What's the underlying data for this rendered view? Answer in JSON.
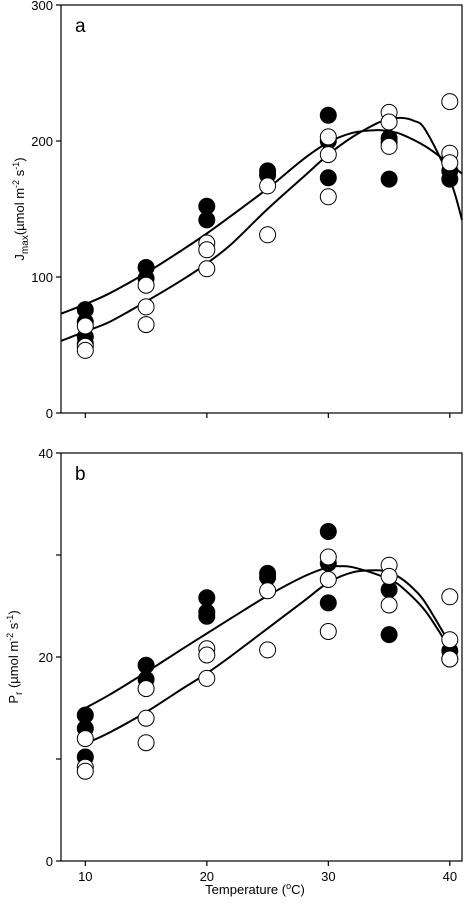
{
  "figure": {
    "xlabel_text": "Temperature (",
    "xlabel_deg": "o",
    "xlabel_unit": "C)"
  },
  "chart_data": [
    {
      "type": "scatter",
      "panel_label": "a",
      "ylabel_main": "J",
      "ylabel_sub": "max",
      "ylabel_rest1": "(µmol m",
      "ylabel_sup1": "-2",
      "ylabel_rest2": " s",
      "ylabel_sup2": "-1",
      "ylabel_rest3": ")",
      "xlim": [
        8,
        41
      ],
      "ylim": [
        0,
        300
      ],
      "x_ticks": [
        10,
        20,
        30,
        40
      ],
      "y_ticks": [
        0,
        100,
        200,
        300
      ],
      "y_ticks_labeled": [
        0,
        100,
        200,
        300
      ],
      "series": [
        {
          "style": "filled",
          "points": [
            [
              10,
              76
            ],
            [
              10,
              67
            ],
            [
              10,
              56
            ],
            [
              10,
              51
            ],
            [
              15,
              107
            ],
            [
              15,
              99
            ],
            [
              20,
              152
            ],
            [
              20,
              142
            ],
            [
              25,
              178
            ],
            [
              25,
              175
            ],
            [
              30,
              219
            ],
            [
              30,
              200
            ],
            [
              30,
              173
            ],
            [
              35,
              202
            ],
            [
              35,
              199
            ],
            [
              35,
              172
            ],
            [
              40,
              178
            ],
            [
              40,
              172
            ]
          ]
        },
        {
          "style": "open",
          "points": [
            [
              10,
              64
            ],
            [
              10,
              49
            ],
            [
              10,
              46
            ],
            [
              15,
              94
            ],
            [
              15,
              78
            ],
            [
              15,
              65
            ],
            [
              20,
              125
            ],
            [
              20,
              120
            ],
            [
              20,
              106
            ],
            [
              25,
              167
            ],
            [
              25,
              131
            ],
            [
              30,
              203
            ],
            [
              30,
              190
            ],
            [
              30,
              159
            ],
            [
              35,
              221
            ],
            [
              35,
              214
            ],
            [
              35,
              196
            ],
            [
              40,
              229
            ],
            [
              40,
              191
            ],
            [
              40,
              184
            ]
          ]
        }
      ],
      "curves": [
        {
          "style": "filled",
          "x": [
            8,
            10,
            12,
            15,
            18,
            20,
            22,
            25,
            28,
            30,
            32,
            34,
            35,
            36,
            38,
            40,
            41
          ],
          "y": [
            73,
            80,
            88,
            103,
            120,
            132,
            145,
            165,
            187,
            199,
            206,
            208,
            207,
            205,
            196,
            183,
            176
          ]
        },
        {
          "style": "open",
          "x": [
            8,
            10,
            12,
            15,
            18,
            20,
            22,
            25,
            28,
            30,
            32,
            34,
            35,
            36,
            37,
            38,
            40,
            41
          ],
          "y": [
            53,
            60,
            67,
            82,
            98,
            110,
            124,
            150,
            174,
            190,
            203,
            213,
            216,
            217,
            215,
            208,
            172,
            142
          ]
        }
      ]
    },
    {
      "type": "scatter",
      "panel_label": "b",
      "ylabel_main": "P",
      "ylabel_sub": "r",
      "ylabel_rest1": " (µmol m",
      "ylabel_sup1": "-2",
      "ylabel_rest2": " s",
      "ylabel_sup2": "-1",
      "ylabel_rest3": ")",
      "xlim": [
        8,
        41
      ],
      "ylim": [
        0,
        40
      ],
      "x_ticks": [
        10,
        20,
        30,
        40
      ],
      "y_ticks": [
        0,
        10,
        20,
        30,
        40
      ],
      "y_ticks_labeled": [
        0,
        20,
        40
      ],
      "series": [
        {
          "style": "filled",
          "points": [
            [
              10,
              14.3
            ],
            [
              10,
              13.0
            ],
            [
              10,
              10.2
            ],
            [
              15,
              19.2
            ],
            [
              15,
              17.8
            ],
            [
              20,
              25.8
            ],
            [
              20,
              24.4
            ],
            [
              20,
              24.0
            ],
            [
              25,
              28.2
            ],
            [
              25,
              27.8
            ],
            [
              30,
              32.3
            ],
            [
              30,
              29.2
            ],
            [
              30,
              25.3
            ],
            [
              35,
              26.6
            ],
            [
              35,
              22.2
            ],
            [
              40,
              20.6
            ],
            [
              40,
              19.8
            ]
          ]
        },
        {
          "style": "open",
          "points": [
            [
              10,
              12.0
            ],
            [
              10,
              9.2
            ],
            [
              10,
              8.8
            ],
            [
              15,
              16.9
            ],
            [
              15,
              14.0
            ],
            [
              15,
              11.6
            ],
            [
              20,
              20.8
            ],
            [
              20,
              20.2
            ],
            [
              20,
              17.9
            ],
            [
              25,
              26.5
            ],
            [
              25,
              20.7
            ],
            [
              30,
              29.8
            ],
            [
              30,
              27.6
            ],
            [
              30,
              22.5
            ],
            [
              35,
              29.0
            ],
            [
              35,
              27.9
            ],
            [
              35,
              25.1
            ],
            [
              40,
              25.9
            ],
            [
              40,
              21.7
            ],
            [
              40,
              19.8
            ]
          ]
        }
      ],
      "curves": [
        {
          "style": "filled",
          "x": [
            10,
            12,
            15,
            18,
            20,
            22,
            25,
            28,
            30,
            31,
            32,
            34,
            35,
            36,
            38,
            40
          ],
          "y": [
            15.0,
            16.3,
            18.5,
            20.8,
            22.3,
            23.8,
            26.0,
            27.9,
            28.8,
            28.9,
            28.8,
            28.1,
            27.6,
            26.9,
            24.5,
            20.8
          ]
        },
        {
          "style": "open",
          "x": [
            10,
            12,
            15,
            18,
            20,
            22,
            25,
            28,
            30,
            32,
            34,
            35,
            36,
            37,
            38,
            40
          ],
          "y": [
            11.5,
            12.6,
            14.6,
            16.9,
            18.4,
            20.1,
            22.8,
            25.5,
            27.3,
            28.3,
            28.5,
            28.3,
            27.7,
            26.7,
            25.3,
            21.3
          ]
        }
      ]
    }
  ]
}
